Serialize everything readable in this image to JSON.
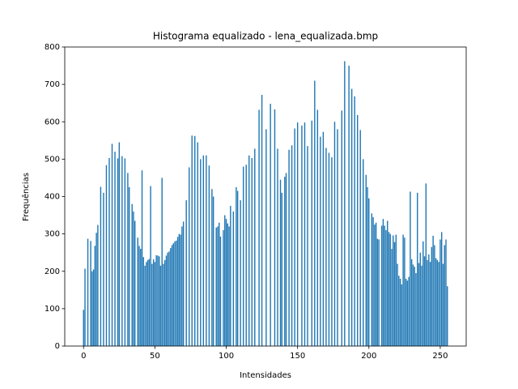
{
  "chart_data": {
    "type": "bar",
    "title": "Histograma equalizado - lena_equalizada.bmp",
    "xlabel": "Intensidades",
    "ylabel": "Frequências",
    "color": "#1f77b4",
    "bar_width": 0.8,
    "grid": false,
    "xlim": [
      -13.19,
      268.19
    ],
    "ylim": [
      0,
      800
    ],
    "xticks": [
      0,
      50,
      100,
      150,
      200,
      250
    ],
    "yticks": [
      0,
      100,
      200,
      300,
      400,
      500,
      600,
      700,
      800
    ],
    "x": [
      0,
      1,
      2,
      3,
      4,
      5,
      6,
      7,
      8,
      9,
      10,
      11,
      12,
      13,
      14,
      15,
      16,
      17,
      18,
      19,
      20,
      21,
      22,
      23,
      24,
      25,
      26,
      27,
      28,
      29,
      30,
      31,
      32,
      33,
      34,
      35,
      36,
      37,
      38,
      39,
      40,
      41,
      42,
      43,
      44,
      45,
      46,
      47,
      48,
      49,
      50,
      51,
      52,
      53,
      54,
      55,
      56,
      57,
      58,
      59,
      60,
      61,
      62,
      63,
      64,
      65,
      66,
      67,
      68,
      69,
      70,
      71,
      72,
      73,
      74,
      75,
      76,
      77,
      78,
      79,
      80,
      81,
      82,
      83,
      84,
      85,
      86,
      87,
      88,
      89,
      90,
      91,
      92,
      93,
      94,
      95,
      96,
      97,
      98,
      99,
      100,
      101,
      102,
      103,
      104,
      105,
      106,
      107,
      108,
      109,
      110,
      111,
      112,
      113,
      114,
      115,
      116,
      117,
      118,
      119,
      120,
      121,
      122,
      123,
      124,
      125,
      126,
      127,
      128,
      129,
      130,
      131,
      132,
      133,
      134,
      135,
      136,
      137,
      138,
      139,
      140,
      141,
      142,
      143,
      144,
      145,
      146,
      147,
      148,
      149,
      150,
      151,
      152,
      153,
      154,
      155,
      156,
      157,
      158,
      159,
      160,
      161,
      162,
      163,
      164,
      165,
      166,
      167,
      168,
      169,
      170,
      171,
      172,
      173,
      174,
      175,
      176,
      177,
      178,
      179,
      180,
      181,
      182,
      183,
      184,
      185,
      186,
      187,
      188,
      189,
      190,
      191,
      192,
      193,
      194,
      195,
      196,
      197,
      198,
      199,
      200,
      201,
      202,
      203,
      204,
      205,
      206,
      207,
      208,
      209,
      210,
      211,
      212,
      213,
      214,
      215,
      216,
      217,
      218,
      219,
      220,
      221,
      222,
      223,
      224,
      225,
      226,
      227,
      228,
      229,
      230,
      231,
      232,
      233,
      234,
      235,
      236,
      237,
      238,
      239,
      240,
      241,
      242,
      243,
      244,
      245,
      246,
      247,
      248,
      249,
      250,
      251,
      252,
      253,
      254,
      255
    ],
    "values": [
      97,
      207,
      0,
      287,
      0,
      281,
      200,
      205,
      268,
      303,
      324,
      0,
      426,
      0,
      410,
      0,
      484,
      0,
      503,
      0,
      541,
      0,
      520,
      0,
      502,
      545,
      0,
      508,
      0,
      502,
      0,
      463,
      425,
      0,
      380,
      360,
      335,
      0,
      290,
      268,
      260,
      470,
      238,
      215,
      225,
      230,
      233,
      428,
      220,
      232,
      225,
      243,
      242,
      240,
      215,
      450,
      220,
      230,
      242,
      250,
      253,
      262,
      270,
      275,
      280,
      282,
      292,
      300,
      298,
      320,
      333,
      0,
      390,
      0,
      478,
      0,
      563,
      0,
      562,
      0,
      545,
      0,
      500,
      0,
      510,
      0,
      510,
      0,
      483,
      0,
      420,
      400,
      0,
      317,
      320,
      330,
      293,
      0,
      310,
      350,
      340,
      328,
      320,
      375,
      0,
      360,
      0,
      425,
      415,
      0,
      390,
      0,
      480,
      0,
      485,
      0,
      510,
      0,
      503,
      0,
      528,
      0,
      0,
      632,
      0,
      672,
      0,
      0,
      580,
      0,
      0,
      648,
      0,
      0,
      633,
      0,
      528,
      0,
      445,
      410,
      0,
      453,
      463,
      0,
      525,
      0,
      537,
      0,
      582,
      0,
      598,
      0,
      0,
      590,
      0,
      598,
      0,
      535,
      0,
      0,
      603,
      0,
      710,
      0,
      632,
      0,
      560,
      0,
      573,
      0,
      530,
      0,
      517,
      0,
      505,
      0,
      600,
      0,
      580,
      0,
      0,
      630,
      0,
      762,
      0,
      0,
      750,
      0,
      688,
      0,
      668,
      0,
      618,
      0,
      578,
      0,
      500,
      0,
      458,
      425,
      395,
      0,
      355,
      345,
      325,
      330,
      287,
      285,
      0,
      322,
      340,
      322,
      310,
      335,
      305,
      300,
      260,
      296,
      278,
      298,
      220,
      188,
      180,
      165,
      298,
      290,
      180,
      175,
      185,
      413,
      232,
      218,
      212,
      195,
      410,
      222,
      250,
      215,
      280,
      240,
      435,
      230,
      245,
      225,
      265,
      295,
      270,
      235,
      230,
      225,
      285,
      305,
      220,
      270,
      285,
      160
    ]
  }
}
